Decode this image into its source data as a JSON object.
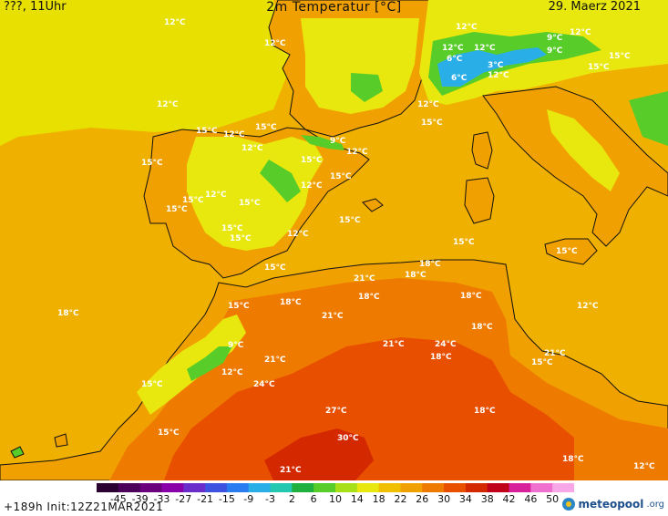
{
  "header": {
    "left": "???, 11Uhr",
    "title": "2m Temperatur [°C]",
    "date": "29. Maerz 2021"
  },
  "footer": {
    "run_info": "+189h  Init:12Z21MAR2021",
    "brand_name": "meteopool",
    "brand_tld": ".org"
  },
  "legend": {
    "ticks": [
      "-45",
      "-39",
      "-33",
      "-27",
      "-21",
      "-15",
      "-9",
      "-3",
      "2",
      "6",
      "10",
      "14",
      "18",
      "22",
      "26",
      "30",
      "34",
      "38",
      "42",
      "46",
      "50"
    ],
    "colors": [
      "#2a0030",
      "#4b0059",
      "#6a007c",
      "#8a00a8",
      "#6a2dcc",
      "#3d52e0",
      "#2a7df0",
      "#2aaee8",
      "#22c8b0",
      "#20b040",
      "#58cc28",
      "#a8e018",
      "#e8e80e",
      "#f0c000",
      "#f0a000",
      "#ef7a00",
      "#e85000",
      "#d42800",
      "#c00018",
      "#d8209a",
      "#f070d0",
      "#f8a8e8"
    ]
  },
  "map": {
    "colors": {
      "sea": "#f0b000",
      "sea_cool": "#e8e000",
      "land_warm": "#f0a000",
      "land_hot": "#ef7a00",
      "land_hotter": "#e85000",
      "land_hottest": "#d42800",
      "land_cool": "#e8e80e",
      "land_cold": "#58cc28",
      "land_coldest": "#2aaee8",
      "coast": "#111111"
    },
    "labels": [
      "12°C",
      "12°C",
      "12°C",
      "12°C",
      "12°C",
      "9°C",
      "6°C",
      "12°C",
      "3°C",
      "12°C",
      "6°C",
      "9°C",
      "12°C",
      "15°C",
      "15°C",
      "12°C",
      "15°C",
      "15°C",
      "12°C",
      "12°C",
      "15°C",
      "9°C",
      "12°C",
      "15°C",
      "15°C",
      "15°C",
      "12°C",
      "12°C",
      "15°C",
      "15°C",
      "15°C",
      "15°C",
      "15°C",
      "15°C",
      "12°C",
      "15°C",
      "15°C",
      "18°C",
      "21°C",
      "18°C",
      "18°C",
      "15°C",
      "15°C",
      "18°C",
      "18°C",
      "21°C",
      "21°C",
      "24°C",
      "18°C",
      "18°C",
      "21°C",
      "15°C",
      "18°C",
      "21°C",
      "24°C",
      "27°C",
      "30°C",
      "21°C",
      "18°C",
      "18°C",
      "12°C",
      "15°C",
      "15°C",
      "12°C",
      "9°C",
      "12°C"
    ]
  }
}
